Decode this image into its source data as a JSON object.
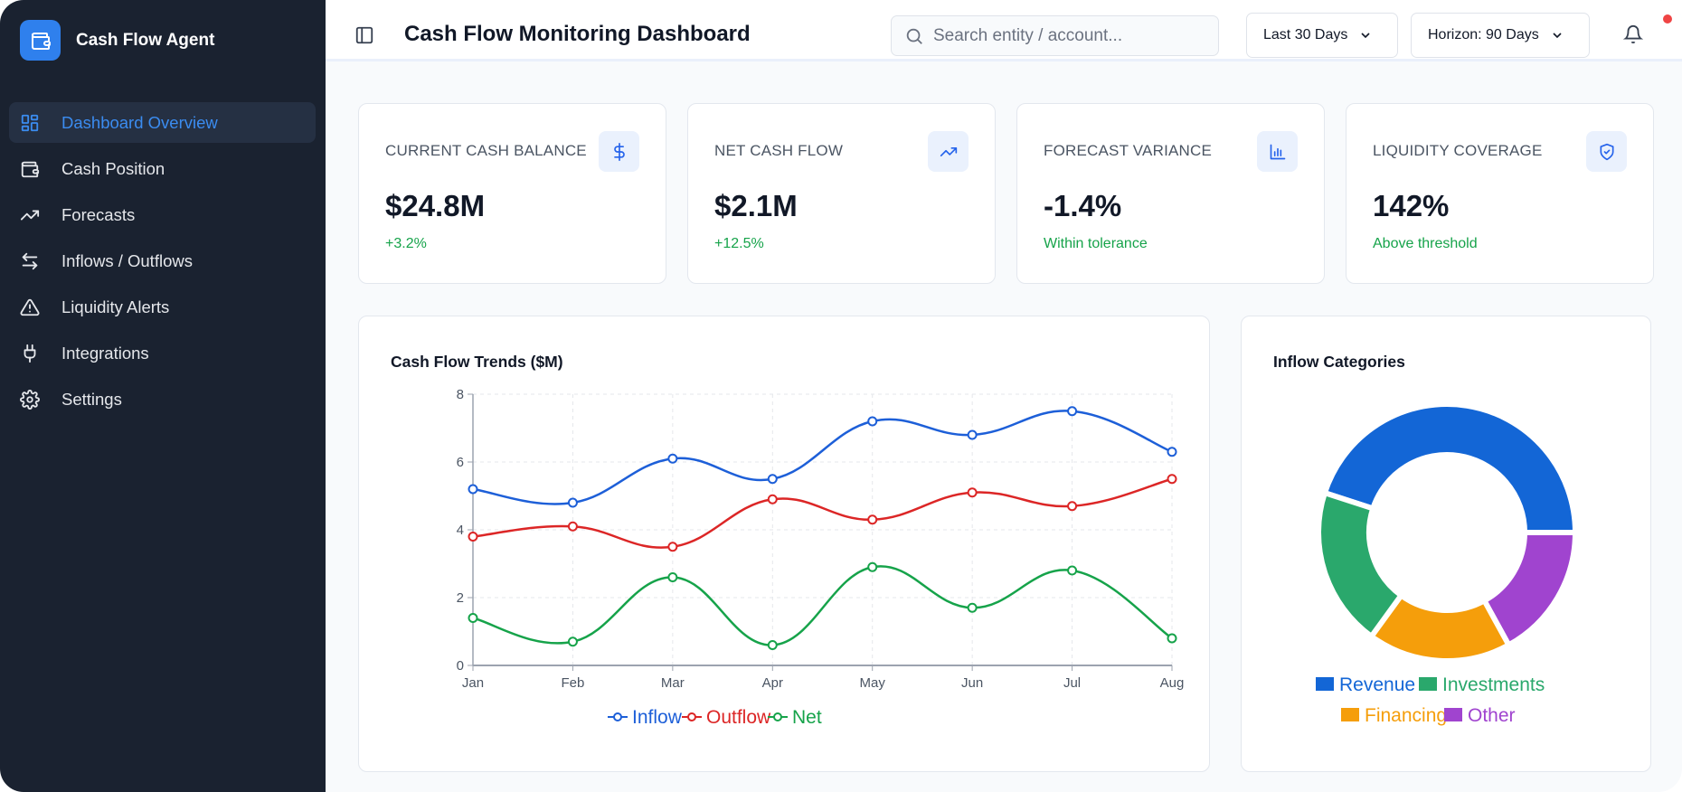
{
  "app": {
    "name": "Cash Flow Agent"
  },
  "sidebar": {
    "items": [
      {
        "label": "Dashboard Overview",
        "icon": "dashboard-grid-icon",
        "active": true
      },
      {
        "label": "Cash Position",
        "icon": "wallet-icon"
      },
      {
        "label": "Forecasts",
        "icon": "trending-up-icon"
      },
      {
        "label": "Inflows / Outflows",
        "icon": "arrows-left-right-icon"
      },
      {
        "label": "Liquidity Alerts",
        "icon": "alert-triangle-icon"
      },
      {
        "label": "Integrations",
        "icon": "plug-icon"
      },
      {
        "label": "Settings",
        "icon": "gear-icon"
      }
    ]
  },
  "header": {
    "title": "Cash Flow Monitoring Dashboard",
    "search_placeholder": "Search entity / account...",
    "period": "Last 30 Days",
    "horizon": "Horizon: 90 Days",
    "has_notifications": true
  },
  "kpis": [
    {
      "label": "CURRENT CASH BALANCE",
      "value": "$24.8M",
      "sub": "+3.2%",
      "icon": "dollar-icon"
    },
    {
      "label": "NET CASH FLOW",
      "value": "$2.1M",
      "sub": "+12.5%",
      "icon": "trending-up-icon"
    },
    {
      "label": "FORECAST VARIANCE",
      "value": "-1.4%",
      "sub": "Within tolerance",
      "icon": "bar-chart-icon"
    },
    {
      "label": "LIQUIDITY COVERAGE",
      "value": "142%",
      "sub": "Above threshold",
      "icon": "shield-check-icon"
    }
  ],
  "colors": {
    "accent": "#2f80ed",
    "positive": "#16a34a",
    "sidebar_bg": "#1a2230"
  },
  "chart_data": [
    {
      "type": "line",
      "title": "Cash Flow Trends ($M)",
      "categories": [
        "Jan",
        "Feb",
        "Mar",
        "Apr",
        "May",
        "Jun",
        "Jul",
        "Aug"
      ],
      "ylim": [
        0,
        8
      ],
      "yticks": [
        0,
        2,
        4,
        6,
        8
      ],
      "grid": true,
      "legend": "bottom",
      "series": [
        {
          "name": "Inflow",
          "color": "#1d5fd8",
          "values": [
            5.2,
            4.8,
            6.1,
            5.5,
            7.2,
            6.8,
            7.5,
            6.3
          ]
        },
        {
          "name": "Outflow",
          "color": "#dc2626",
          "values": [
            3.8,
            4.1,
            3.5,
            4.9,
            4.3,
            5.1,
            4.7,
            5.5
          ]
        },
        {
          "name": "Net",
          "color": "#16a34a",
          "values": [
            1.4,
            0.7,
            2.6,
            0.6,
            2.9,
            1.7,
            2.8,
            0.8
          ]
        }
      ]
    },
    {
      "type": "pie",
      "title": "Inflow Categories",
      "legend": "bottom",
      "slices": [
        {
          "name": "Revenue",
          "value": 45,
          "color": "#1366d6"
        },
        {
          "name": "Other",
          "value": 17,
          "color": "#a044cf"
        },
        {
          "name": "Financing",
          "value": 18,
          "color": "#f59e0b"
        },
        {
          "name": "Investments",
          "value": 20,
          "color": "#2aa86c"
        }
      ],
      "legend_order": [
        "Revenue",
        "Investments",
        "Financing",
        "Other"
      ]
    }
  ]
}
